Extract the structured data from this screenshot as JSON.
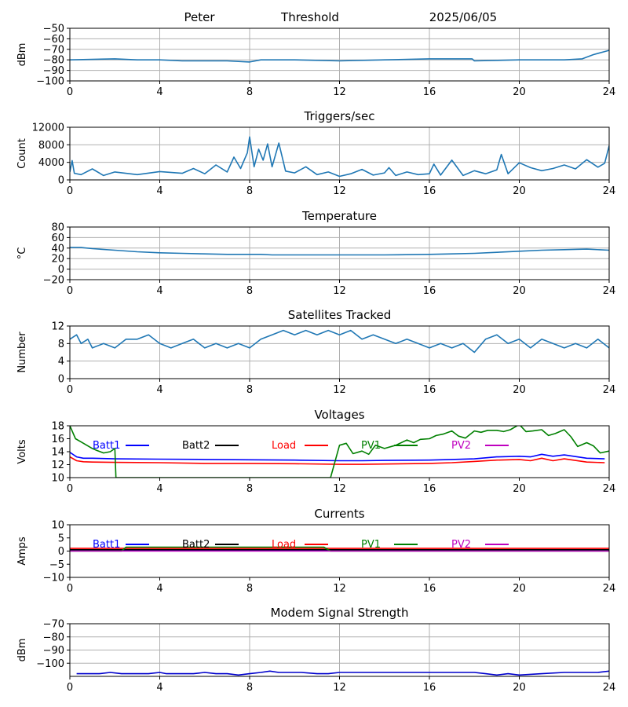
{
  "header": {
    "station": "Peter",
    "mode": "Threshold",
    "date": "2025/06/05"
  },
  "colors": {
    "default": "#1f77b4",
    "Batt1": "#0000ff",
    "Batt2": "#000000",
    "Load": "#ff0000",
    "PV1": "#008000",
    "PV2": "#bf00bf",
    "grid": "#b0b0b0"
  },
  "chart_data": [
    {
      "type": "line",
      "title": "",
      "xlabel": "",
      "ylabel": "dBm",
      "xlim": [
        0,
        24
      ],
      "ylim": [
        -100,
        -50
      ],
      "xticks": [
        0,
        4,
        8,
        12,
        16,
        20,
        24
      ],
      "yticks": [
        -100,
        -90,
        -80,
        -70,
        -60,
        -50
      ],
      "grid": true,
      "series": [
        {
          "name": "",
          "color": "#1f77b4",
          "x": [
            0,
            2,
            3,
            4,
            5,
            6,
            7,
            8,
            8.5,
            10,
            12,
            14,
            16,
            17.9,
            18,
            20,
            22,
            22.8,
            23.3,
            24
          ],
          "y": [
            -80,
            -79,
            -80,
            -80,
            -81,
            -81,
            -81,
            -82,
            -80,
            -80,
            -81,
            -80,
            -79,
            -79,
            -81,
            -80,
            -80,
            -79,
            -75,
            -71
          ]
        }
      ]
    },
    {
      "type": "line",
      "title": "Triggers/sec",
      "xlabel": "",
      "ylabel": "Count",
      "xlim": [
        0,
        24
      ],
      "ylim": [
        0,
        12000
      ],
      "xticks": [
        0,
        4,
        8,
        12,
        16,
        20,
        24
      ],
      "yticks": [
        0,
        4000,
        8000,
        12000
      ],
      "grid": true,
      "series": [
        {
          "name": "",
          "color": "#1f77b4",
          "x": [
            0,
            0.1,
            0.2,
            0.5,
            1,
            1.5,
            2,
            3,
            4,
            5,
            5.5,
            6,
            6.5,
            7,
            7.3,
            7.6,
            7.9,
            8,
            8.2,
            8.4,
            8.6,
            8.8,
            9,
            9.3,
            9.6,
            10,
            10.5,
            11,
            11.5,
            12,
            12.5,
            13,
            13.5,
            14,
            14.2,
            14.5,
            15,
            15.5,
            16,
            16.2,
            16.5,
            17,
            17.5,
            18,
            18.5,
            19,
            19.2,
            19.5,
            20,
            20.5,
            21,
            21.5,
            22,
            22.5,
            23,
            23.5,
            23.8,
            24
          ],
          "y": [
            1800,
            4400,
            1500,
            1200,
            2500,
            1000,
            1800,
            1200,
            1900,
            1500,
            2600,
            1400,
            3400,
            1800,
            5200,
            2600,
            6200,
            9800,
            3000,
            7000,
            4500,
            8200,
            3000,
            8400,
            2000,
            1600,
            3000,
            1200,
            1800,
            800,
            1400,
            2400,
            1100,
            1600,
            2800,
            1000,
            1800,
            1200,
            1400,
            3600,
            1100,
            4500,
            1000,
            2100,
            1400,
            2300,
            5800,
            1400,
            3900,
            2800,
            2100,
            2600,
            3400,
            2500,
            4600,
            2900,
            3800,
            7800
          ]
        }
      ]
    },
    {
      "type": "line",
      "title": "Temperature",
      "xlabel": "",
      "ylabel": "°C",
      "xlim": [
        0,
        24
      ],
      "ylim": [
        -20,
        80
      ],
      "xticks": [
        0,
        4,
        8,
        12,
        16,
        20,
        24
      ],
      "yticks": [
        -20,
        0,
        20,
        40,
        60,
        80
      ],
      "grid": true,
      "series": [
        {
          "name": "",
          "color": "#1f77b4",
          "x": [
            0,
            0.5,
            1,
            2,
            3,
            4,
            5,
            6,
            7,
            8,
            8.5,
            9,
            12,
            14,
            16,
            17,
            18,
            19,
            20,
            21,
            22,
            23,
            24
          ],
          "y": [
            41,
            41,
            39,
            36,
            33,
            31,
            30,
            29,
            28,
            28,
            28,
            27,
            27,
            27,
            28,
            29,
            30,
            32,
            34,
            36,
            37,
            38,
            36
          ]
        }
      ]
    },
    {
      "type": "line",
      "title": "Satellites Tracked",
      "xlabel": "",
      "ylabel": "Number",
      "xlim": [
        0,
        24
      ],
      "ylim": [
        0,
        12
      ],
      "xticks": [
        0,
        4,
        8,
        12,
        16,
        20,
        24
      ],
      "yticks": [
        0,
        4,
        8,
        12
      ],
      "grid": true,
      "series": [
        {
          "name": "",
          "color": "#1f77b4",
          "x": [
            0,
            0.3,
            0.5,
            0.8,
            1,
            1.5,
            2,
            2.5,
            3,
            3.5,
            4,
            4.5,
            5,
            5.5,
            6,
            6.5,
            7,
            7.5,
            8,
            8.5,
            9,
            9.5,
            10,
            10.5,
            11,
            11.5,
            12,
            12.5,
            13,
            13.5,
            14,
            14.5,
            15,
            15.5,
            16,
            16.5,
            17,
            17.5,
            18,
            18.5,
            19,
            19.5,
            20,
            20.5,
            21,
            21.5,
            22,
            22.5,
            23,
            23.5,
            24
          ],
          "y": [
            9,
            10,
            8,
            9,
            7,
            8,
            7,
            9,
            9,
            10,
            8,
            7,
            8,
            9,
            7,
            8,
            7,
            8,
            7,
            9,
            10,
            11,
            10,
            11,
            10,
            11,
            10,
            11,
            9,
            10,
            9,
            8,
            9,
            8,
            7,
            8,
            7,
            8,
            6,
            9,
            10,
            8,
            9,
            7,
            9,
            8,
            7,
            8,
            7,
            9,
            7
          ]
        }
      ]
    },
    {
      "type": "line",
      "title": "Voltages",
      "xlabel": "",
      "ylabel": "Volts",
      "xlim": [
        0,
        24
      ],
      "ylim": [
        10,
        18
      ],
      "xticks": [
        0,
        4,
        8,
        12,
        16,
        20,
        24
      ],
      "yticks": [
        10,
        12,
        14,
        16,
        18
      ],
      "grid": false,
      "series": [
        {
          "name": "Batt1",
          "color": "#0000ff",
          "x": [
            0,
            0.3,
            0.6,
            1,
            2,
            4,
            6,
            8,
            10,
            12,
            13,
            14,
            16,
            17,
            18,
            19,
            20,
            20.5,
            21,
            21.5,
            22,
            23,
            23.8
          ],
          "y": [
            13.9,
            13.2,
            13.0,
            13.0,
            12.9,
            12.85,
            12.8,
            12.75,
            12.7,
            12.6,
            12.6,
            12.65,
            12.7,
            12.8,
            12.9,
            13.2,
            13.3,
            13.2,
            13.6,
            13.3,
            13.5,
            13.0,
            12.9
          ]
        },
        {
          "name": "Batt2",
          "color": "#000000",
          "x": [],
          "y": []
        },
        {
          "name": "Load",
          "color": "#ff0000",
          "x": [
            0,
            0.3,
            0.6,
            1,
            2,
            4,
            6,
            8,
            10,
            12,
            13,
            14,
            16,
            17,
            18,
            19,
            20,
            20.5,
            21,
            21.5,
            22,
            23,
            23.8
          ],
          "y": [
            13.2,
            12.6,
            12.45,
            12.4,
            12.35,
            12.3,
            12.2,
            12.2,
            12.15,
            12.05,
            12.05,
            12.1,
            12.2,
            12.3,
            12.5,
            12.7,
            12.8,
            12.6,
            13.0,
            12.6,
            12.9,
            12.4,
            12.3
          ]
        },
        {
          "name": "PV1",
          "color": "#008000",
          "x": [
            0,
            0.25,
            0.5,
            1,
            1.2,
            1.5,
            1.8,
            2,
            2.05,
            11.6,
            12,
            12.3,
            12.6,
            13,
            13.3,
            13.6,
            14,
            14.5,
            15,
            15.3,
            15.6,
            16,
            16.3,
            16.6,
            17,
            17.3,
            17.6,
            18,
            18.3,
            18.6,
            19,
            19.3,
            19.6,
            20,
            20.3,
            20.6,
            21,
            21.3,
            21.6,
            22,
            22.3,
            22.6,
            23,
            23.3,
            23.6,
            24
          ],
          "y": [
            18,
            16,
            15.5,
            14.5,
            14.2,
            13.8,
            14,
            14.5,
            10,
            10,
            15,
            15.3,
            13.7,
            14.1,
            13.6,
            15,
            14.5,
            15,
            15.8,
            15.4,
            15.9,
            16,
            16.5,
            16.7,
            17.2,
            16.4,
            16.1,
            17.2,
            17,
            17.3,
            17.3,
            17.1,
            17.4,
            18.2,
            17.1,
            17.2,
            17.4,
            16.5,
            16.8,
            17.4,
            16.3,
            14.8,
            15.4,
            14.9,
            13.8,
            14.1
          ]
        },
        {
          "name": "PV2",
          "color": "#bf00bf",
          "x": [],
          "y": []
        }
      ]
    },
    {
      "type": "line",
      "title": "Currents",
      "xlabel": "",
      "ylabel": "Amps",
      "xlim": [
        0,
        24
      ],
      "ylim": [
        -10,
        10
      ],
      "xticks": [
        0,
        4,
        8,
        12,
        16,
        20,
        24
      ],
      "yticks": [
        -10,
        -5,
        0,
        5,
        10
      ],
      "grid": false,
      "series": [
        {
          "name": "Batt1",
          "color": "#0000ff",
          "x": [
            0,
            24
          ],
          "y": [
            0.3,
            0.3
          ]
        },
        {
          "name": "Batt2",
          "color": "#000000",
          "x": [
            0,
            24
          ],
          "y": [
            0.5,
            0.5
          ]
        },
        {
          "name": "Load",
          "color": "#ff0000",
          "x": [
            0,
            24
          ],
          "y": [
            1.0,
            1.0
          ]
        },
        {
          "name": "PV1",
          "color": "#008000",
          "x": [
            0,
            2.3,
            2.5,
            11.3,
            11.6,
            24
          ],
          "y": [
            0,
            0,
            1.5,
            1.5,
            0,
            0
          ]
        },
        {
          "name": "PV2",
          "color": "#bf00bf",
          "x": [
            0,
            24
          ],
          "y": [
            0,
            0
          ]
        }
      ]
    },
    {
      "type": "line",
      "title": "Modem Signal Strength",
      "xlabel": "",
      "ylabel": "dBm",
      "xlim": [
        0,
        24
      ],
      "ylim": [
        -110,
        -70
      ],
      "xticks": [
        0,
        4,
        8,
        12,
        16,
        20,
        24
      ],
      "yticks": [
        -100,
        -90,
        -80,
        -70
      ],
      "grid": true,
      "series": [
        {
          "name": "",
          "color": "#0000cc",
          "x": [
            0.3,
            1.3,
            1.8,
            2.3,
            3,
            3.5,
            4,
            4.3,
            5,
            5.5,
            6,
            6.5,
            7,
            7.5,
            8,
            8.5,
            8.9,
            9.3,
            9.7,
            10.3,
            11,
            11.5,
            12,
            13,
            14,
            15,
            16,
            17,
            18,
            18.5,
            19,
            19.5,
            20,
            21,
            22,
            23,
            23.5,
            24
          ],
          "y": [
            -108,
            -108,
            -107,
            -108,
            -108,
            -108,
            -107,
            -108,
            -108,
            -108,
            -107,
            -108,
            -108,
            -109,
            -108,
            -107,
            -106,
            -107,
            -107,
            -107,
            -108,
            -108,
            -107,
            -107,
            -107,
            -107,
            -107,
            -107,
            -107,
            -108,
            -109,
            -108,
            -109,
            -108,
            -107,
            -107,
            -107,
            -106
          ]
        }
      ]
    }
  ]
}
